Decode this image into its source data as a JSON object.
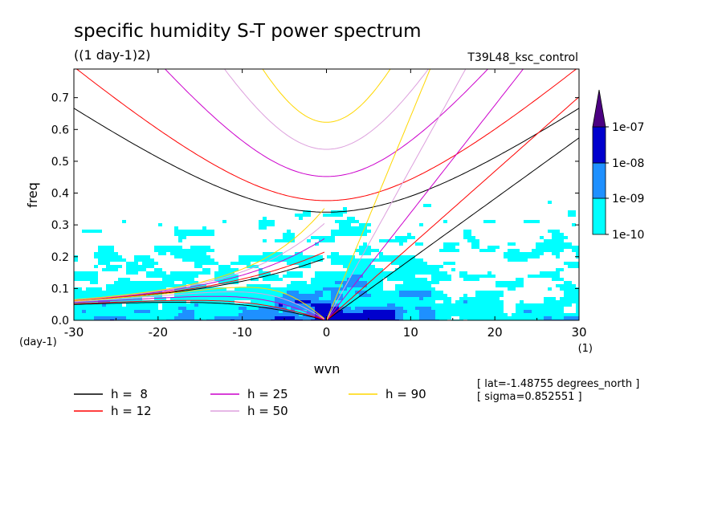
{
  "chart_data": {
    "type": "heatmap",
    "title": "specific humidity S-T power spectrum",
    "subtitle": "((1 day-1)2)",
    "dataset_label": "T39L48_ksc_control",
    "xlabel": "wvn",
    "ylabel": "freq",
    "x_unit": "(1)",
    "y_unit": "(day-1)",
    "xlim": [
      -30,
      30
    ],
    "ylim": [
      0,
      0.79
    ],
    "x_ticks": [
      -30,
      -20,
      -10,
      0,
      10,
      20,
      30
    ],
    "y_ticks": [
      0.0,
      0.1,
      0.2,
      0.3,
      0.4,
      0.5,
      0.6,
      0.7
    ],
    "x_tick_labels": [
      "-30",
      "-20",
      "-10",
      "0",
      "10",
      "20",
      "30"
    ],
    "y_tick_labels": [
      "0.0",
      "0.1",
      "0.2",
      "0.3",
      "0.4",
      "0.5",
      "0.6",
      "0.7"
    ],
    "colorbar": {
      "levels": [
        "1e-10",
        "1e-09",
        "1e-08",
        "1e-07"
      ],
      "colors": [
        "#00ffff",
        "#1e90ff",
        "#0000cd",
        "#4b0082"
      ]
    },
    "dispersion_curves": [
      {
        "label": "h =  8",
        "h": 8,
        "color": "#000000"
      },
      {
        "label": "h = 12",
        "h": 12,
        "color": "#ff0000"
      },
      {
        "label": "h = 25",
        "h": 25,
        "color": "#cc00cc"
      },
      {
        "label": "h = 50",
        "h": 50,
        "color": "#dda0dd"
      },
      {
        "label": "h = 90",
        "h": 90,
        "color": "#ffd700"
      }
    ],
    "annotations": [
      "[ lat=-1.48755 degrees_north ]",
      "[ sigma=0.852551 ]"
    ],
    "grid": false
  }
}
